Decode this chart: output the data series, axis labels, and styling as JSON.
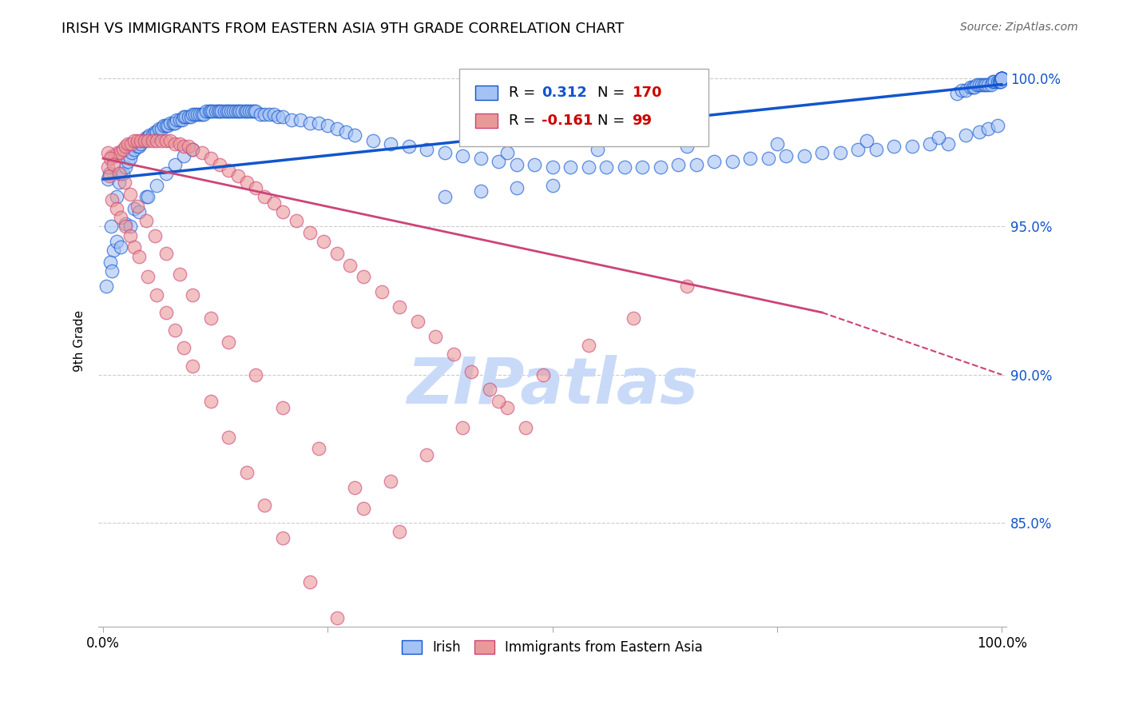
{
  "title": "IRISH VS IMMIGRANTS FROM EASTERN ASIA 9TH GRADE CORRELATION CHART",
  "source": "Source: ZipAtlas.com",
  "ylabel": "9th Grade",
  "y_ticks": [
    0.85,
    0.9,
    0.95,
    1.0
  ],
  "y_tick_labels": [
    "85.0%",
    "90.0%",
    "95.0%",
    "100.0%"
  ],
  "x_ticks": [
    0.0,
    0.25,
    0.5,
    0.75,
    1.0
  ],
  "x_tick_labels": [
    "0.0%",
    "",
    "",
    "",
    "100.0%"
  ],
  "ylim": [
    0.815,
    1.008
  ],
  "xlim": [
    -0.005,
    1.005
  ],
  "blue_R": 0.312,
  "blue_N": 170,
  "pink_R": -0.161,
  "pink_N": 99,
  "blue_color": "#a4c2f4",
  "pink_color": "#ea9999",
  "blue_line_color": "#1155cc",
  "pink_line_color": "#cc4477",
  "legend_label_blue": "Irish",
  "legend_label_pink": "Immigrants from Eastern Asia",
  "watermark": "ZIPatlas",
  "watermark_color": "#c9daf8",
  "blue_trend_start_x": 0.0,
  "blue_trend_end_x": 1.0,
  "blue_trend_start_y": 0.966,
  "blue_trend_end_y": 0.998,
  "pink_trend_start_x": 0.0,
  "pink_trend_end_x": 0.8,
  "pink_trend_dash_end_x": 1.0,
  "pink_trend_start_y": 0.973,
  "pink_trend_end_y": 0.921,
  "pink_trend_dash_end_y": 0.9,
  "blue_scatter_x": [
    0.005,
    0.007,
    0.009,
    0.012,
    0.015,
    0.018,
    0.02,
    0.022,
    0.025,
    0.028,
    0.03,
    0.032,
    0.035,
    0.038,
    0.04,
    0.042,
    0.045,
    0.048,
    0.05,
    0.052,
    0.055,
    0.058,
    0.06,
    0.062,
    0.065,
    0.068,
    0.07,
    0.072,
    0.075,
    0.078,
    0.08,
    0.082,
    0.085,
    0.088,
    0.09,
    0.092,
    0.095,
    0.098,
    0.1,
    0.102,
    0.105,
    0.108,
    0.11,
    0.112,
    0.115,
    0.118,
    0.12,
    0.122,
    0.125,
    0.128,
    0.13,
    0.132,
    0.135,
    0.138,
    0.14,
    0.142,
    0.145,
    0.148,
    0.15,
    0.152,
    0.155,
    0.158,
    0.16,
    0.163,
    0.165,
    0.168,
    0.17,
    0.175,
    0.18,
    0.185,
    0.19,
    0.195,
    0.2,
    0.21,
    0.22,
    0.23,
    0.24,
    0.25,
    0.26,
    0.27,
    0.28,
    0.3,
    0.32,
    0.34,
    0.36,
    0.38,
    0.4,
    0.42,
    0.44,
    0.46,
    0.48,
    0.5,
    0.52,
    0.54,
    0.56,
    0.58,
    0.6,
    0.62,
    0.64,
    0.66,
    0.68,
    0.7,
    0.72,
    0.74,
    0.76,
    0.78,
    0.8,
    0.82,
    0.84,
    0.86,
    0.88,
    0.9,
    0.92,
    0.94,
    0.95,
    0.955,
    0.96,
    0.965,
    0.968,
    0.97,
    0.972,
    0.975,
    0.978,
    0.98,
    0.982,
    0.985,
    0.988,
    0.99,
    0.992,
    0.995,
    0.997,
    0.998,
    0.999,
    1.0,
    1.0,
    1.0,
    1.0,
    1.0,
    1.0,
    1.0,
    0.004,
    0.008,
    0.015,
    0.025,
    0.035,
    0.048,
    0.01,
    0.02,
    0.03,
    0.04,
    0.05,
    0.06,
    0.07,
    0.08,
    0.09,
    0.1,
    0.45,
    0.55,
    0.65,
    0.75,
    0.85,
    0.93,
    0.96,
    0.975,
    0.985,
    0.995,
    0.38,
    0.42,
    0.46,
    0.5
  ],
  "blue_scatter_y": [
    0.966,
    0.968,
    0.95,
    0.942,
    0.96,
    0.965,
    0.968,
    0.968,
    0.97,
    0.972,
    0.973,
    0.975,
    0.976,
    0.977,
    0.977,
    0.978,
    0.979,
    0.98,
    0.98,
    0.981,
    0.981,
    0.982,
    0.982,
    0.983,
    0.983,
    0.984,
    0.984,
    0.984,
    0.985,
    0.985,
    0.985,
    0.986,
    0.986,
    0.986,
    0.987,
    0.987,
    0.987,
    0.987,
    0.988,
    0.988,
    0.988,
    0.988,
    0.988,
    0.988,
    0.989,
    0.989,
    0.989,
    0.989,
    0.989,
    0.989,
    0.989,
    0.989,
    0.989,
    0.989,
    0.989,
    0.989,
    0.989,
    0.989,
    0.989,
    0.989,
    0.989,
    0.989,
    0.989,
    0.989,
    0.989,
    0.989,
    0.989,
    0.988,
    0.988,
    0.988,
    0.988,
    0.987,
    0.987,
    0.986,
    0.986,
    0.985,
    0.985,
    0.984,
    0.983,
    0.982,
    0.981,
    0.979,
    0.978,
    0.977,
    0.976,
    0.975,
    0.974,
    0.973,
    0.972,
    0.971,
    0.971,
    0.97,
    0.97,
    0.97,
    0.97,
    0.97,
    0.97,
    0.97,
    0.971,
    0.971,
    0.972,
    0.972,
    0.973,
    0.973,
    0.974,
    0.974,
    0.975,
    0.975,
    0.976,
    0.976,
    0.977,
    0.977,
    0.978,
    0.978,
    0.995,
    0.996,
    0.996,
    0.997,
    0.997,
    0.997,
    0.998,
    0.998,
    0.998,
    0.998,
    0.998,
    0.998,
    0.998,
    0.999,
    0.999,
    0.999,
    0.999,
    0.999,
    0.999,
    1.0,
    1.0,
    1.0,
    1.0,
    1.0,
    1.0,
    1.0,
    0.93,
    0.938,
    0.945,
    0.951,
    0.956,
    0.96,
    0.935,
    0.943,
    0.95,
    0.955,
    0.96,
    0.964,
    0.968,
    0.971,
    0.974,
    0.976,
    0.975,
    0.976,
    0.977,
    0.978,
    0.979,
    0.98,
    0.981,
    0.982,
    0.983,
    0.984,
    0.96,
    0.962,
    0.963,
    0.964
  ],
  "pink_scatter_x": [
    0.005,
    0.007,
    0.01,
    0.013,
    0.016,
    0.019,
    0.022,
    0.025,
    0.028,
    0.031,
    0.035,
    0.038,
    0.042,
    0.046,
    0.05,
    0.055,
    0.06,
    0.065,
    0.07,
    0.075,
    0.08,
    0.085,
    0.09,
    0.095,
    0.1,
    0.11,
    0.12,
    0.13,
    0.14,
    0.15,
    0.16,
    0.17,
    0.18,
    0.19,
    0.2,
    0.215,
    0.23,
    0.245,
    0.26,
    0.275,
    0.29,
    0.31,
    0.33,
    0.35,
    0.37,
    0.39,
    0.41,
    0.43,
    0.45,
    0.47,
    0.01,
    0.015,
    0.02,
    0.025,
    0.03,
    0.035,
    0.04,
    0.05,
    0.06,
    0.07,
    0.08,
    0.09,
    0.1,
    0.12,
    0.14,
    0.16,
    0.18,
    0.2,
    0.23,
    0.26,
    0.29,
    0.32,
    0.36,
    0.4,
    0.44,
    0.49,
    0.54,
    0.59,
    0.005,
    0.008,
    0.012,
    0.018,
    0.024,
    0.03,
    0.038,
    0.048,
    0.058,
    0.07,
    0.085,
    0.1,
    0.12,
    0.14,
    0.17,
    0.2,
    0.24,
    0.28,
    0.33,
    0.65
  ],
  "pink_scatter_y": [
    0.97,
    0.967,
    0.974,
    0.974,
    0.975,
    0.975,
    0.976,
    0.977,
    0.978,
    0.978,
    0.979,
    0.979,
    0.979,
    0.979,
    0.979,
    0.979,
    0.979,
    0.979,
    0.979,
    0.979,
    0.978,
    0.978,
    0.977,
    0.977,
    0.976,
    0.975,
    0.973,
    0.971,
    0.969,
    0.967,
    0.965,
    0.963,
    0.96,
    0.958,
    0.955,
    0.952,
    0.948,
    0.945,
    0.941,
    0.937,
    0.933,
    0.928,
    0.923,
    0.918,
    0.913,
    0.907,
    0.901,
    0.895,
    0.889,
    0.882,
    0.959,
    0.956,
    0.953,
    0.95,
    0.947,
    0.943,
    0.94,
    0.933,
    0.927,
    0.921,
    0.915,
    0.909,
    0.903,
    0.891,
    0.879,
    0.867,
    0.856,
    0.845,
    0.83,
    0.818,
    0.855,
    0.864,
    0.873,
    0.882,
    0.891,
    0.9,
    0.91,
    0.919,
    0.975,
    0.973,
    0.971,
    0.968,
    0.965,
    0.961,
    0.957,
    0.952,
    0.947,
    0.941,
    0.934,
    0.927,
    0.919,
    0.911,
    0.9,
    0.889,
    0.875,
    0.862,
    0.847,
    0.93
  ]
}
